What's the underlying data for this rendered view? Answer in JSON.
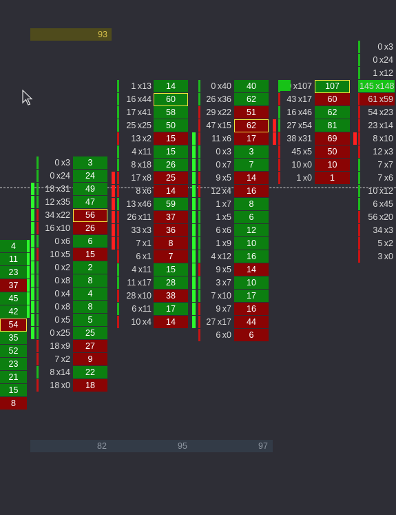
{
  "header": {
    "total_value": "93"
  },
  "footer": {
    "totals": [
      "82",
      "95",
      "97"
    ]
  },
  "colors": {
    "buy": "#0c7f10",
    "sell": "#8a0404",
    "highlight": "#f2e23c",
    "background": "#2e2e36"
  },
  "icons": {
    "cursor": "mouse-pointer-icon",
    "price_line": "current-price-line"
  },
  "columns": [
    {
      "id": "col-0",
      "rows": [
        {
          "delta": "4",
          "sign": "g"
        },
        {
          "delta": "11",
          "sign": "g"
        },
        {
          "delta": "23",
          "sign": "g"
        },
        {
          "delta": "37",
          "sign": "r"
        },
        {
          "delta": "45",
          "sign": "g"
        },
        {
          "delta": "42",
          "sign": "g"
        },
        {
          "delta": "54",
          "sign": "r",
          "highlight": true
        },
        {
          "delta": "35",
          "sign": "g"
        },
        {
          "delta": "52",
          "sign": "g"
        },
        {
          "delta": "23",
          "sign": "g"
        },
        {
          "delta": "21",
          "sign": "g"
        },
        {
          "delta": "15",
          "sign": "g"
        },
        {
          "delta": "8",
          "sign": "r"
        }
      ]
    },
    {
      "id": "col-1",
      "rows": [
        {
          "bid": "0",
          "ask": "3",
          "delta": "3",
          "sign": "g"
        },
        {
          "bid": "0",
          "ask": "24",
          "delta": "24",
          "sign": "g"
        },
        {
          "bid": "18",
          "ask": "31",
          "delta": "49",
          "sign": "g"
        },
        {
          "bid": "12",
          "ask": "35",
          "delta": "47",
          "sign": "g"
        },
        {
          "bid": "34",
          "ask": "22",
          "delta": "56",
          "sign": "r",
          "highlight": true
        },
        {
          "bid": "16",
          "ask": "10",
          "delta": "26",
          "sign": "r"
        },
        {
          "bid": "0",
          "ask": "6",
          "delta": "6",
          "sign": "g"
        },
        {
          "bid": "10",
          "ask": "5",
          "delta": "15",
          "sign": "r"
        },
        {
          "bid": "0",
          "ask": "2",
          "delta": "2",
          "sign": "g"
        },
        {
          "bid": "0",
          "ask": "8",
          "delta": "8",
          "sign": "g"
        },
        {
          "bid": "0",
          "ask": "4",
          "delta": "4",
          "sign": "g"
        },
        {
          "bid": "0",
          "ask": "8",
          "delta": "8",
          "sign": "g"
        },
        {
          "bid": "0",
          "ask": "5",
          "delta": "5",
          "sign": "g"
        },
        {
          "bid": "0",
          "ask": "25",
          "delta": "25",
          "sign": "g"
        },
        {
          "bid": "18",
          "ask": "9",
          "delta": "27",
          "sign": "r"
        },
        {
          "bid": "7",
          "ask": "2",
          "delta": "9",
          "sign": "r"
        },
        {
          "bid": "8",
          "ask": "14",
          "delta": "22",
          "sign": "g"
        },
        {
          "bid": "18",
          "ask": "0",
          "delta": "18",
          "sign": "r"
        }
      ]
    },
    {
      "id": "col-2",
      "rows": [
        {
          "bid": "1",
          "ask": "13",
          "delta": "14",
          "sign": "g"
        },
        {
          "bid": "16",
          "ask": "44",
          "delta": "60",
          "sign": "g",
          "highlight": true
        },
        {
          "bid": "17",
          "ask": "41",
          "delta": "58",
          "sign": "g"
        },
        {
          "bid": "25",
          "ask": "25",
          "delta": "50",
          "sign": "g"
        },
        {
          "bid": "13",
          "ask": "2",
          "delta": "15",
          "sign": "r"
        },
        {
          "bid": "4",
          "ask": "11",
          "delta": "15",
          "sign": "g"
        },
        {
          "bid": "8",
          "ask": "18",
          "delta": "26",
          "sign": "g"
        },
        {
          "bid": "17",
          "ask": "8",
          "delta": "25",
          "sign": "r"
        },
        {
          "bid": "8",
          "ask": "6",
          "delta": "14",
          "sign": "r"
        },
        {
          "bid": "13",
          "ask": "46",
          "delta": "59",
          "sign": "g"
        },
        {
          "bid": "26",
          "ask": "11",
          "delta": "37",
          "sign": "r"
        },
        {
          "bid": "33",
          "ask": "3",
          "delta": "36",
          "sign": "r"
        },
        {
          "bid": "7",
          "ask": "1",
          "delta": "8",
          "sign": "r"
        },
        {
          "bid": "6",
          "ask": "1",
          "delta": "7",
          "sign": "r"
        },
        {
          "bid": "4",
          "ask": "11",
          "delta": "15",
          "sign": "g"
        },
        {
          "bid": "11",
          "ask": "17",
          "delta": "28",
          "sign": "g"
        },
        {
          "bid": "28",
          "ask": "10",
          "delta": "38",
          "sign": "r"
        },
        {
          "bid": "6",
          "ask": "11",
          "delta": "17",
          "sign": "g"
        },
        {
          "bid": "10",
          "ask": "4",
          "delta": "14",
          "sign": "r"
        }
      ]
    },
    {
      "id": "col-3",
      "rows": [
        {
          "bid": "0",
          "ask": "40",
          "delta": "40",
          "sign": "g"
        },
        {
          "bid": "26",
          "ask": "36",
          "delta": "62",
          "sign": "g"
        },
        {
          "bid": "29",
          "ask": "22",
          "delta": "51",
          "sign": "r"
        },
        {
          "bid": "47",
          "ask": "15",
          "delta": "62",
          "sign": "r",
          "highlight": true
        },
        {
          "bid": "11",
          "ask": "6",
          "delta": "17",
          "sign": "r"
        },
        {
          "bid": "0",
          "ask": "3",
          "delta": "3",
          "sign": "g"
        },
        {
          "bid": "0",
          "ask": "7",
          "delta": "7",
          "sign": "g"
        },
        {
          "bid": "9",
          "ask": "5",
          "delta": "14",
          "sign": "r"
        },
        {
          "bid": "12",
          "ask": "4",
          "delta": "16",
          "sign": "r"
        },
        {
          "bid": "1",
          "ask": "7",
          "delta": "8",
          "sign": "g"
        },
        {
          "bid": "1",
          "ask": "5",
          "delta": "6",
          "sign": "g"
        },
        {
          "bid": "6",
          "ask": "6",
          "delta": "12",
          "sign": "g"
        },
        {
          "bid": "1",
          "ask": "9",
          "delta": "10",
          "sign": "g"
        },
        {
          "bid": "4",
          "ask": "12",
          "delta": "16",
          "sign": "g"
        },
        {
          "bid": "9",
          "ask": "5",
          "delta": "14",
          "sign": "r"
        },
        {
          "bid": "3",
          "ask": "7",
          "delta": "10",
          "sign": "g"
        },
        {
          "bid": "7",
          "ask": "10",
          "delta": "17",
          "sign": "g"
        },
        {
          "bid": "9",
          "ask": "7",
          "delta": "16",
          "sign": "r"
        },
        {
          "bid": "27",
          "ask": "17",
          "delta": "44",
          "sign": "r"
        },
        {
          "bid": "6",
          "ask": "0",
          "delta": "6",
          "sign": "r"
        }
      ]
    },
    {
      "id": "col-4",
      "rows": [
        {
          "bid": "0",
          "ask": "107",
          "delta": "107",
          "sign": "g",
          "highlight": true
        },
        {
          "bid": "43",
          "ask": "17",
          "delta": "60",
          "sign": "r"
        },
        {
          "bid": "16",
          "ask": "46",
          "delta": "62",
          "sign": "g"
        },
        {
          "bid": "27",
          "ask": "54",
          "delta": "81",
          "sign": "g"
        },
        {
          "bid": "38",
          "ask": "31",
          "delta": "69",
          "sign": "r"
        },
        {
          "bid": "45",
          "ask": "5",
          "delta": "50",
          "sign": "r"
        },
        {
          "bid": "10",
          "ask": "0",
          "delta": "10",
          "sign": "r"
        },
        {
          "bid": "1",
          "ask": "0",
          "delta": "1",
          "sign": "r"
        }
      ]
    },
    {
      "id": "col-5",
      "rows": [
        {
          "bid": "0",
          "ask": "3"
        },
        {
          "bid": "0",
          "ask": "24"
        },
        {
          "bid": "1",
          "ask": "12"
        },
        {
          "bid": "145",
          "ask": "148"
        },
        {
          "bid": "61",
          "ask": "59"
        },
        {
          "bid": "54",
          "ask": "23"
        },
        {
          "bid": "23",
          "ask": "14"
        },
        {
          "bid": "8",
          "ask": "10"
        },
        {
          "bid": "12",
          "ask": "3"
        },
        {
          "bid": "7",
          "ask": "7"
        },
        {
          "bid": "7",
          "ask": "6"
        },
        {
          "bid": "10",
          "ask": "12"
        },
        {
          "bid": "6",
          "ask": "45"
        },
        {
          "bid": "56",
          "ask": "20"
        },
        {
          "bid": "34",
          "ask": "3"
        },
        {
          "bid": "5",
          "ask": "2"
        },
        {
          "bid": "3",
          "ask": "0"
        }
      ]
    }
  ]
}
